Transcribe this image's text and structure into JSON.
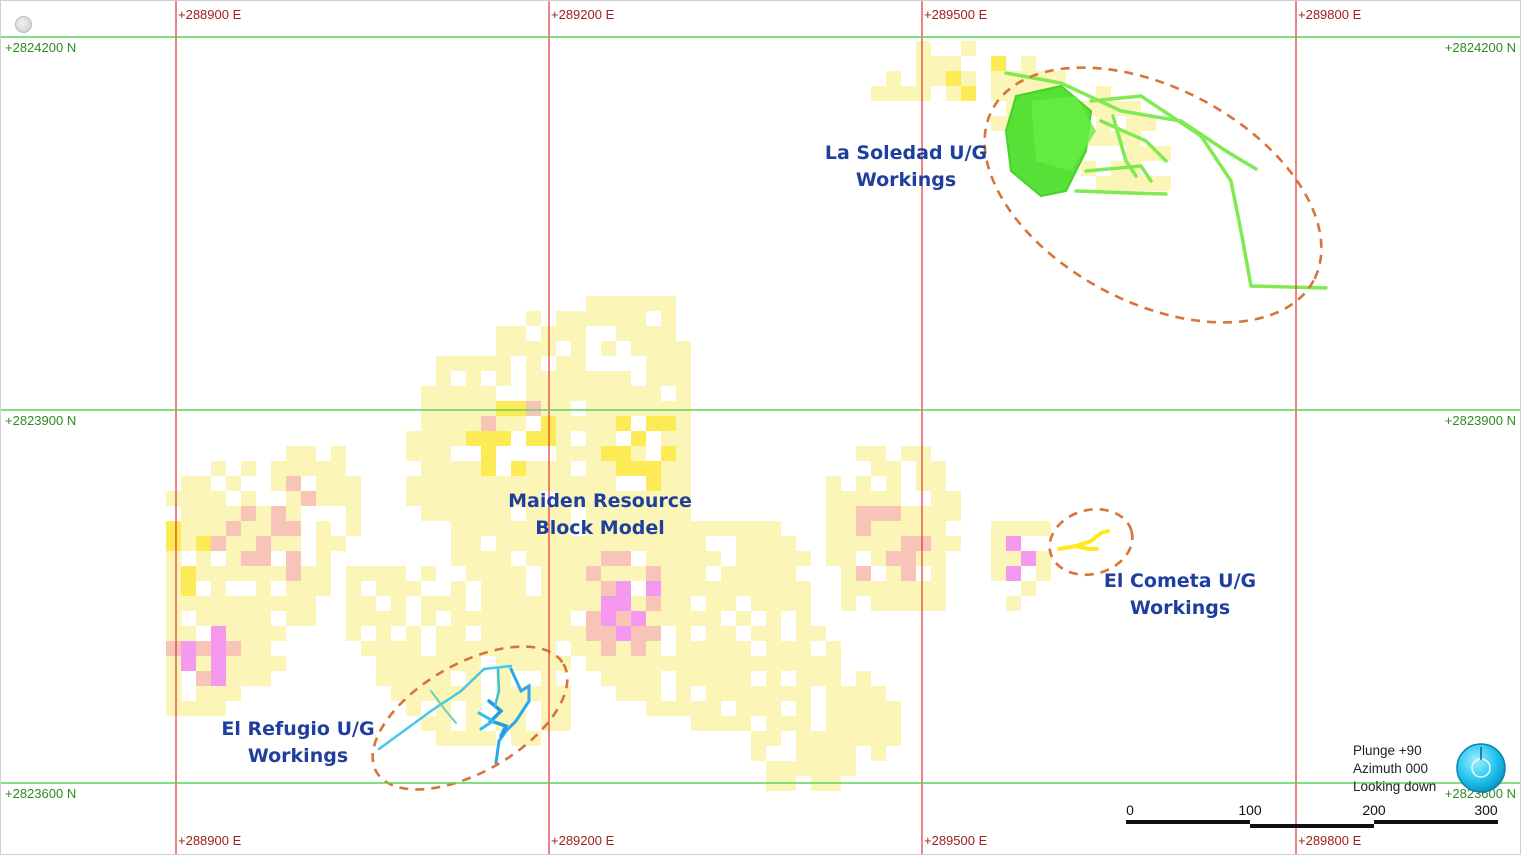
{
  "map": {
    "easting_labels": [
      "+288900 E",
      "+289200 E",
      "+289500 E",
      "+289800 E"
    ],
    "northing_labels": [
      "+2824200 N",
      "+2823900 N",
      "+2823600 N"
    ],
    "easting_values": [
      288900,
      289200,
      289500,
      289800
    ],
    "northing_values": [
      2824200,
      2823900,
      2823600
    ],
    "colors": {
      "easting_grid": "#e0342f",
      "northing_grid": "#5fd35a",
      "annotation": "#1f3f9f",
      "zone_outline": "#d8733a",
      "block_low": "#fbf6b8",
      "block_mid": "#fdeb55",
      "block_high": "#f8c4b8",
      "block_peak": "#f498f0",
      "soledad_workings": "#56e63a",
      "refugio_workings": "#2fbcf0",
      "cometa_workings": "#ffe81c"
    }
  },
  "annotations": {
    "soledad": [
      "La Soledad U/G",
      "Workings"
    ],
    "block_model": [
      "Maiden Resource",
      "Block Model"
    ],
    "cometa": [
      "El Cometa U/G",
      "Workings"
    ],
    "refugio": [
      "El Refugio U/G",
      "Workings"
    ]
  },
  "view": {
    "plunge": "Plunge +90",
    "azimuth": "Azimuth 000",
    "direction": "Looking down"
  },
  "scale_bar": {
    "labels": [
      "0",
      "100",
      "200",
      "300"
    ]
  },
  "icons": {
    "tool": "globe-tool-icon",
    "orientation": "orientation-compass-icon"
  }
}
